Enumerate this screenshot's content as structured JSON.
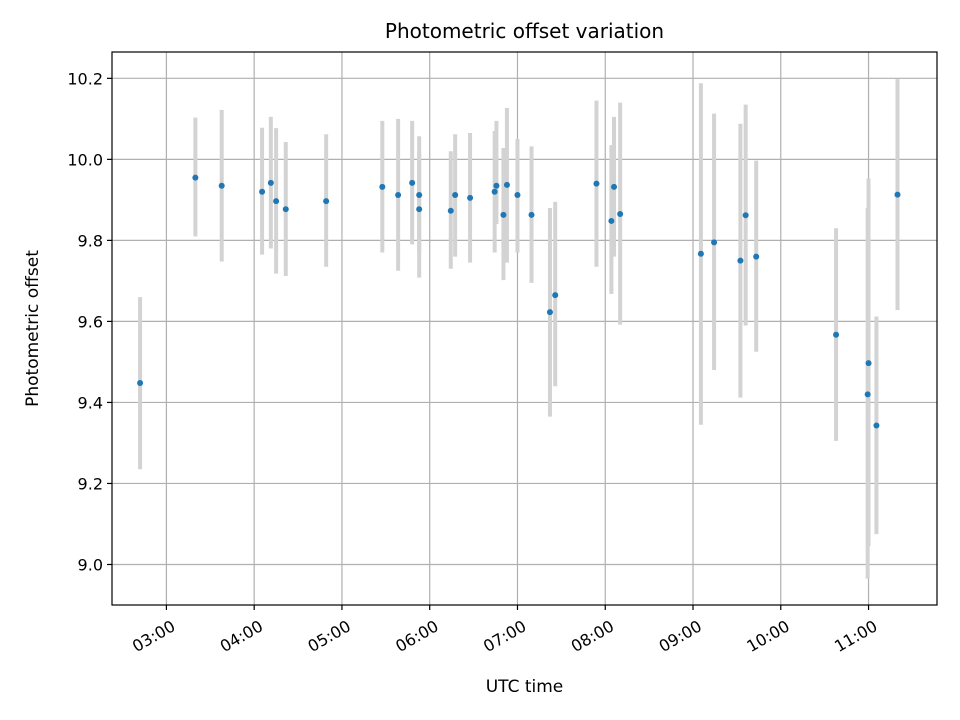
{
  "chart_data": {
    "type": "scatter",
    "title": "Photometric offset variation",
    "xlabel": "UTC time",
    "ylabel": "Photometric offset",
    "x_unit": "hours UTC",
    "xlim": [
      2.38,
      11.78
    ],
    "ylim": [
      8.9,
      10.265
    ],
    "x_ticks": [
      {
        "value": 3,
        "label": "03:00"
      },
      {
        "value": 4,
        "label": "04:00"
      },
      {
        "value": 5,
        "label": "05:00"
      },
      {
        "value": 6,
        "label": "06:00"
      },
      {
        "value": 7,
        "label": "07:00"
      },
      {
        "value": 8,
        "label": "08:00"
      },
      {
        "value": 9,
        "label": "09:00"
      },
      {
        "value": 10,
        "label": "10:00"
      },
      {
        "value": 11,
        "label": "11:00"
      }
    ],
    "y_ticks": [
      {
        "value": 9.0,
        "label": "9.0"
      },
      {
        "value": 9.2,
        "label": "9.2"
      },
      {
        "value": 9.4,
        "label": "9.4"
      },
      {
        "value": 9.6,
        "label": "9.6"
      },
      {
        "value": 9.8,
        "label": "9.8"
      },
      {
        "value": 10.0,
        "label": "10.0"
      },
      {
        "value": 10.2,
        "label": "10.2"
      }
    ],
    "grid": true,
    "colors": {
      "point": "#1f77b4",
      "errorbar": "#d3d3d3",
      "grid": "#b0b0b0"
    },
    "points": [
      {
        "x": 2.7,
        "y": 9.448,
        "lo": 9.235,
        "hi": 9.66
      },
      {
        "x": 3.33,
        "y": 9.955,
        "lo": 9.81,
        "hi": 10.103
      },
      {
        "x": 3.63,
        "y": 9.935,
        "lo": 9.748,
        "hi": 10.122
      },
      {
        "x": 4.09,
        "y": 9.92,
        "lo": 9.765,
        "hi": 10.078
      },
      {
        "x": 4.19,
        "y": 9.942,
        "lo": 9.78,
        "hi": 10.105
      },
      {
        "x": 4.25,
        "y": 9.897,
        "lo": 9.718,
        "hi": 10.077
      },
      {
        "x": 4.36,
        "y": 9.877,
        "lo": 9.712,
        "hi": 10.043
      },
      {
        "x": 4.82,
        "y": 9.897,
        "lo": 9.735,
        "hi": 10.062
      },
      {
        "x": 5.46,
        "y": 9.932,
        "lo": 9.77,
        "hi": 10.095
      },
      {
        "x": 5.64,
        "y": 9.912,
        "lo": 9.725,
        "hi": 10.1
      },
      {
        "x": 5.8,
        "y": 9.942,
        "lo": 9.79,
        "hi": 10.095
      },
      {
        "x": 5.88,
        "y": 9.912,
        "lo": 9.77,
        "hi": 10.057
      },
      {
        "x": 5.88,
        "y": 9.877,
        "lo": 9.708,
        "hi": 10.02
      },
      {
        "x": 6.24,
        "y": 9.873,
        "lo": 9.73,
        "hi": 10.02
      },
      {
        "x": 6.29,
        "y": 9.912,
        "lo": 9.76,
        "hi": 10.062
      },
      {
        "x": 6.46,
        "y": 9.905,
        "lo": 9.745,
        "hi": 10.065
      },
      {
        "x": 6.74,
        "y": 9.92,
        "lo": 9.77,
        "hi": 10.07
      },
      {
        "x": 6.76,
        "y": 9.935,
        "lo": 9.84,
        "hi": 10.095
      },
      {
        "x": 6.84,
        "y": 9.863,
        "lo": 9.702,
        "hi": 10.028
      },
      {
        "x": 6.88,
        "y": 9.937,
        "lo": 9.745,
        "hi": 10.127
      },
      {
        "x": 7.0,
        "y": 9.912,
        "lo": 9.77,
        "hi": 10.05
      },
      {
        "x": 7.16,
        "y": 9.863,
        "lo": 9.695,
        "hi": 10.032
      },
      {
        "x": 7.37,
        "y": 9.623,
        "lo": 9.365,
        "hi": 9.88
      },
      {
        "x": 7.43,
        "y": 9.665,
        "lo": 9.44,
        "hi": 9.895
      },
      {
        "x": 7.9,
        "y": 9.94,
        "lo": 9.735,
        "hi": 10.145
      },
      {
        "x": 8.07,
        "y": 9.848,
        "lo": 9.668,
        "hi": 10.035
      },
      {
        "x": 8.1,
        "y": 9.932,
        "lo": 9.76,
        "hi": 10.105
      },
      {
        "x": 8.17,
        "y": 9.865,
        "lo": 9.592,
        "hi": 10.14
      },
      {
        "x": 9.09,
        "y": 9.767,
        "lo": 9.345,
        "hi": 10.188
      },
      {
        "x": 9.24,
        "y": 9.795,
        "lo": 9.48,
        "hi": 10.113
      },
      {
        "x": 9.54,
        "y": 9.75,
        "lo": 9.412,
        "hi": 10.088
      },
      {
        "x": 9.6,
        "y": 9.862,
        "lo": 9.59,
        "hi": 10.135
      },
      {
        "x": 9.72,
        "y": 9.76,
        "lo": 9.525,
        "hi": 9.997
      },
      {
        "x": 10.63,
        "y": 9.567,
        "lo": 9.305,
        "hi": 9.83
      },
      {
        "x": 10.99,
        "y": 9.42,
        "lo": 8.965,
        "hi": 9.88
      },
      {
        "x": 11.0,
        "y": 9.497,
        "lo": 9.045,
        "hi": 9.953
      },
      {
        "x": 11.09,
        "y": 9.343,
        "lo": 9.075,
        "hi": 9.612
      },
      {
        "x": 11.33,
        "y": 9.913,
        "lo": 9.628,
        "hi": 10.198
      }
    ]
  }
}
